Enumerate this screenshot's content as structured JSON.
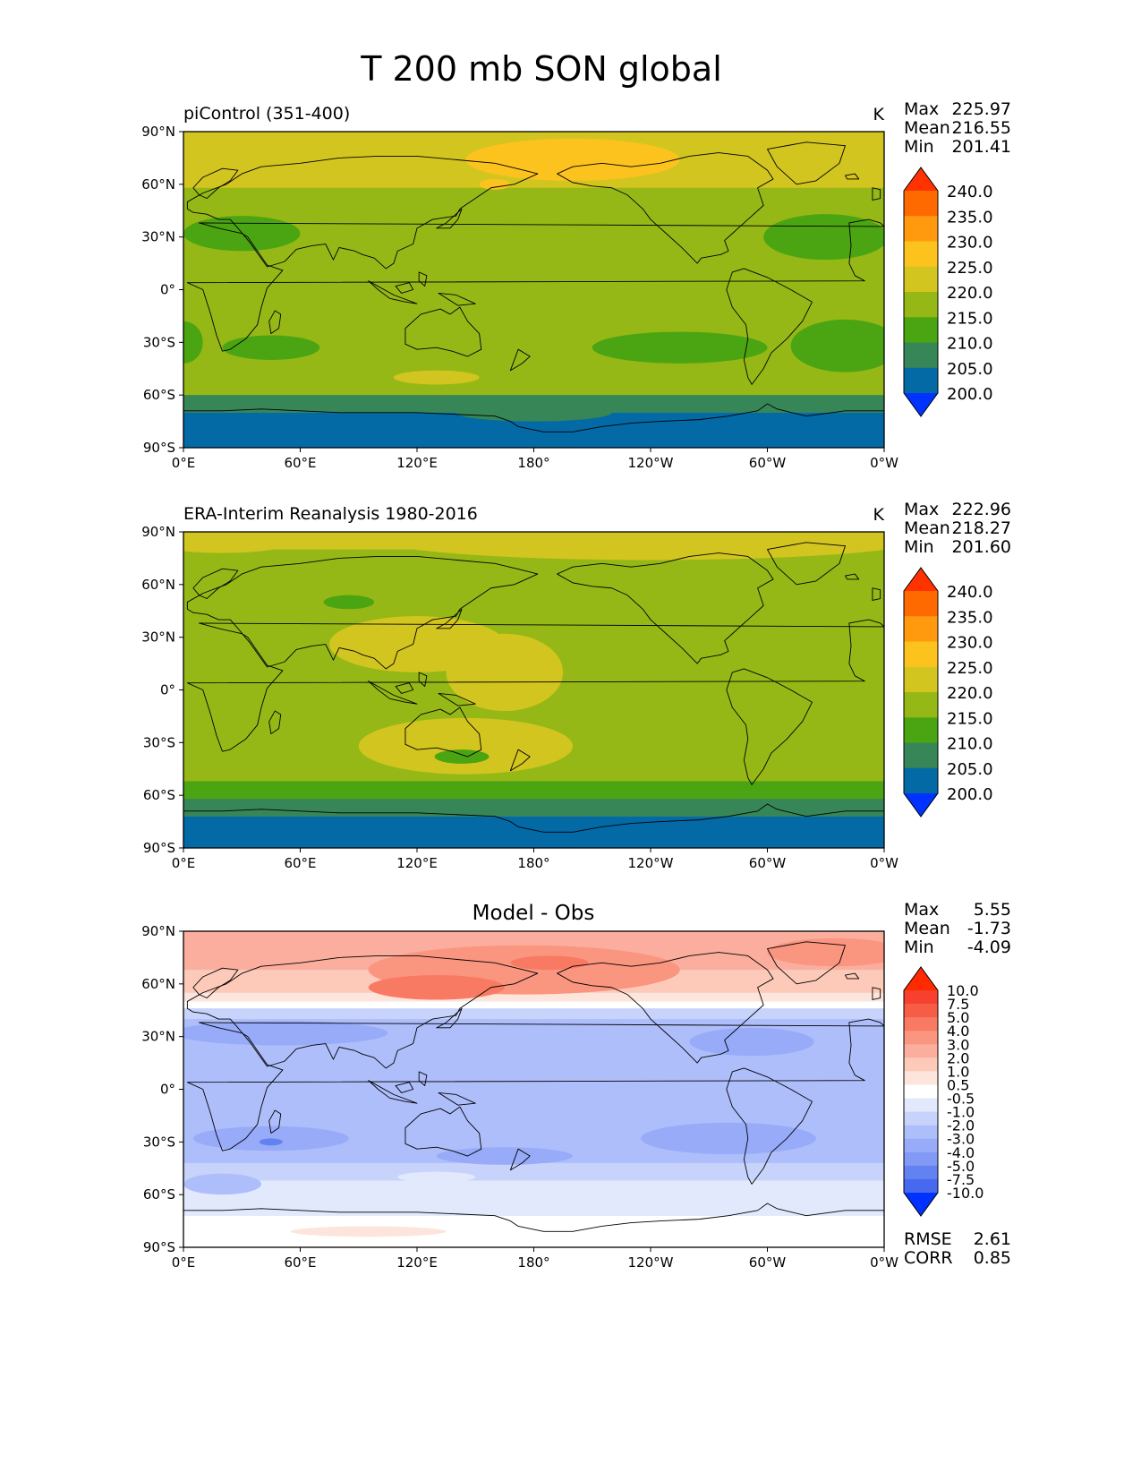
{
  "figure_title": "T 200 mb SON global",
  "color_scales": {
    "abs": {
      "levels": [
        "240.0",
        "235.0",
        "230.0",
        "225.0",
        "220.0",
        "215.0",
        "210.0",
        "205.0",
        "200.0"
      ],
      "colors": [
        "#ff3300",
        "#ff6a00",
        "#ff9a0f",
        "#fcc21e",
        "#d3c51f",
        "#96b817",
        "#4ba512",
        "#378657",
        "#036aa5",
        "#0033ff"
      ]
    },
    "diff": {
      "levels": [
        "10.0",
        "7.5",
        "5.0",
        "4.0",
        "3.0",
        "2.0",
        "1.0",
        "0.5",
        "-0.5",
        "-1.0",
        "-2.0",
        "-3.0",
        "-4.0",
        "-5.0",
        "-7.5",
        "-10.0"
      ],
      "colors": [
        "#ff2a00",
        "#f8402f",
        "#f75d46",
        "#f97a62",
        "#fa9580",
        "#fbae9d",
        "#fdcab9",
        "#fee5dc",
        "#ffffff",
        "#e3e9fc",
        "#c8d3fb",
        "#aebefb",
        "#98abf8",
        "#8299f6",
        "#6282f1",
        "#4669ef",
        "#0032ff"
      ]
    }
  },
  "panels": [
    {
      "id": "model",
      "title_left": "piControl (351-400)",
      "title_center": "",
      "units": "K",
      "stats": [
        {
          "label": "Max",
          "value": "225.97"
        },
        {
          "label": "Mean",
          "value": "216.55"
        },
        {
          "label": "Min",
          "value": "201.41"
        }
      ],
      "colorbar": "abs",
      "extra_stats": []
    },
    {
      "id": "obs",
      "title_left": "ERA-Interim Reanalysis 1980-2016",
      "title_center": "",
      "units": "K",
      "stats": [
        {
          "label": "Max",
          "value": "222.96"
        },
        {
          "label": "Mean",
          "value": "218.27"
        },
        {
          "label": "Min",
          "value": "201.60"
        }
      ],
      "colorbar": "abs",
      "extra_stats": []
    },
    {
      "id": "diff",
      "title_left": "",
      "title_center": "Model - Obs",
      "units": "",
      "stats": [
        {
          "label": "Max",
          "value": "5.55"
        },
        {
          "label": "Mean",
          "value": "-1.73"
        },
        {
          "label": "Min",
          "value": "-4.09"
        }
      ],
      "colorbar": "diff",
      "extra_stats": [
        {
          "label": "RMSE",
          "value": "2.61"
        },
        {
          "label": "CORR",
          "value": "0.85"
        }
      ]
    }
  ],
  "axes": {
    "lon_range": [
      0,
      360
    ],
    "lat_range": [
      -90,
      90
    ],
    "lon_ticks": [
      {
        "value": 0,
        "label": "0°E"
      },
      {
        "value": 60,
        "label": "60°E"
      },
      {
        "value": 120,
        "label": "120°E"
      },
      {
        "value": 180,
        "label": "180°"
      },
      {
        "value": 240,
        "label": "120°W"
      },
      {
        "value": 300,
        "label": "60°W"
      },
      {
        "value": 360,
        "label": "0°W"
      }
    ],
    "lat_ticks": [
      {
        "value": 90,
        "label": "90°N"
      },
      {
        "value": 60,
        "label": "60°N"
      },
      {
        "value": 30,
        "label": "30°N"
      },
      {
        "value": 0,
        "label": "0°"
      },
      {
        "value": -30,
        "label": "30°S"
      },
      {
        "value": -60,
        "label": "60°S"
      },
      {
        "value": -90,
        "label": "90°S"
      }
    ]
  },
  "map_fields": {
    "model": {
      "background": "#96b817",
      "bands": [
        {
          "lat_from": 90,
          "lat_to": 58,
          "color": "#d3c51f"
        },
        {
          "lat_from": -50,
          "lat_to": -60,
          "color": "#96b817"
        },
        {
          "lat_from": -60,
          "lat_to": -70,
          "color": "#378657"
        },
        {
          "lat_from": -70,
          "lat_to": -90,
          "color": "#036aa5"
        }
      ],
      "blobs": [
        {
          "lon": 200,
          "lat": 74,
          "rlon": 55,
          "rlat": 12,
          "color": "#fcc21e"
        },
        {
          "lon": 160,
          "lat": 60,
          "rlon": 8,
          "rlat": 3,
          "color": "#fcc21e"
        },
        {
          "lon": 30,
          "lat": 32,
          "rlon": 30,
          "rlat": 10,
          "color": "#4ba512"
        },
        {
          "lon": 330,
          "lat": 30,
          "rlon": 32,
          "rlat": 13,
          "color": "#4ba512"
        },
        {
          "lon": 255,
          "lat": -33,
          "rlon": 45,
          "rlat": 9,
          "color": "#4ba512"
        },
        {
          "lon": 340,
          "lat": -32,
          "rlon": 28,
          "rlat": 15,
          "color": "#4ba512"
        },
        {
          "lon": 45,
          "lat": -33,
          "rlon": 25,
          "rlat": 7,
          "color": "#4ba512"
        },
        {
          "lon": 0,
          "lat": -30,
          "rlon": 10,
          "rlat": 12,
          "color": "#4ba512"
        },
        {
          "lon": 130,
          "lat": -50,
          "rlon": 22,
          "rlat": 4,
          "color": "#d3c51f"
        },
        {
          "lon": 180,
          "lat": -70,
          "rlon": 40,
          "rlat": 5,
          "color": "#378657"
        }
      ]
    },
    "obs": {
      "background": "#96b817",
      "bands": [
        {
          "lat_from": 90,
          "lat_to": 80,
          "color": "#d3c51f"
        },
        {
          "lat_from": -52,
          "lat_to": -62,
          "color": "#4ba512"
        },
        {
          "lat_from": -62,
          "lat_to": -72,
          "color": "#378657"
        },
        {
          "lat_from": -72,
          "lat_to": -90,
          "color": "#036aa5"
        }
      ],
      "blobs": [
        {
          "lon": 240,
          "lat": 86,
          "rlon": 140,
          "rlat": 12,
          "color": "#d3c51f"
        },
        {
          "lon": 20,
          "lat": 86,
          "rlon": 40,
          "rlat": 8,
          "color": "#d3c51f"
        },
        {
          "lon": 120,
          "lat": 26,
          "rlon": 45,
          "rlat": 16,
          "color": "#d3c51f"
        },
        {
          "lon": 165,
          "lat": 10,
          "rlon": 30,
          "rlat": 22,
          "color": "#d3c51f"
        },
        {
          "lon": 145,
          "lat": -32,
          "rlon": 55,
          "rlat": 16,
          "color": "#d3c51f"
        },
        {
          "lon": 85,
          "lat": 50,
          "rlon": 13,
          "rlat": 4,
          "color": "#4ba512"
        },
        {
          "lon": 143,
          "lat": -38,
          "rlon": 14,
          "rlat": 4,
          "color": "#4ba512"
        }
      ]
    },
    "diff": {
      "background": "#aebefb",
      "bands": [
        {
          "lat_from": 90,
          "lat_to": 68,
          "color": "#fbae9d"
        },
        {
          "lat_from": 68,
          "lat_to": 55,
          "color": "#fdcab9"
        },
        {
          "lat_from": 55,
          "lat_to": 50,
          "color": "#fee5dc"
        },
        {
          "lat_from": 50,
          "lat_to": 46,
          "color": "#ffffff"
        },
        {
          "lat_from": 46,
          "lat_to": 40,
          "color": "#c8d3fb"
        },
        {
          "lat_from": -42,
          "lat_to": -52,
          "color": "#c8d3fb"
        },
        {
          "lat_from": -52,
          "lat_to": -72,
          "color": "#e3e9fc"
        },
        {
          "lat_from": -72,
          "lat_to": -90,
          "color": "#ffffff"
        }
      ],
      "blobs": [
        {
          "lon": 175,
          "lat": 68,
          "rlon": 80,
          "rlat": 14,
          "color": "#fa9580"
        },
        {
          "lon": 130,
          "lat": 58,
          "rlon": 35,
          "rlat": 7,
          "color": "#f97a62"
        },
        {
          "lon": 188,
          "lat": 72,
          "rlon": 20,
          "rlat": 4,
          "color": "#f97a62"
        },
        {
          "lon": 335,
          "lat": 78,
          "rlon": 35,
          "rlat": 8,
          "color": "#fa9580"
        },
        {
          "lon": 50,
          "lat": 32,
          "rlon": 55,
          "rlat": 7,
          "color": "#98abf8"
        },
        {
          "lon": 292,
          "lat": 27,
          "rlon": 32,
          "rlat": 8,
          "color": "#98abf8"
        },
        {
          "lon": 45,
          "lat": -28,
          "rlon": 40,
          "rlat": 7,
          "color": "#98abf8"
        },
        {
          "lon": 280,
          "lat": -28,
          "rlon": 45,
          "rlat": 9,
          "color": "#98abf8"
        },
        {
          "lon": 165,
          "lat": -38,
          "rlon": 35,
          "rlat": 5,
          "color": "#98abf8"
        },
        {
          "lon": 45,
          "lat": -30,
          "rlon": 6,
          "rlat": 2,
          "color": "#6282f1"
        },
        {
          "lon": 130,
          "lat": -50,
          "rlon": 20,
          "rlat": 3,
          "color": "#e3e9fc"
        },
        {
          "lon": 20,
          "lat": -54,
          "rlon": 20,
          "rlat": 6,
          "color": "#aebefb"
        },
        {
          "lon": 95,
          "lat": -81,
          "rlon": 40,
          "rlat": 3,
          "color": "#fee5dc"
        }
      ]
    }
  }
}
